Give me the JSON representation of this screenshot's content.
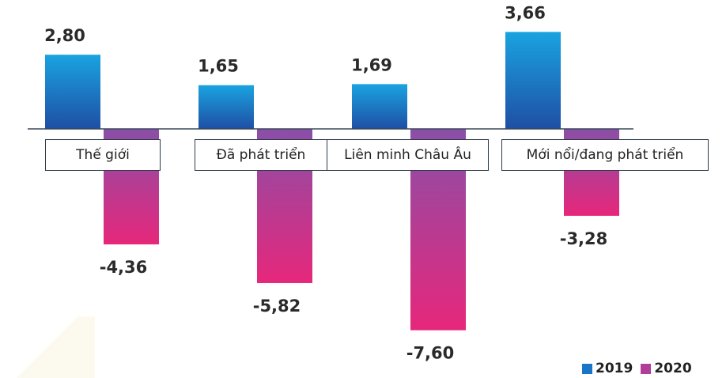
{
  "chart_data": {
    "type": "bar",
    "categories": [
      "Thế giới",
      "Đã phát triển",
      "Liên minh Châu Âu",
      "Mới nổi/đang phát triển"
    ],
    "series": [
      {
        "name": "2019",
        "values": [
          2.8,
          1.65,
          1.69,
          3.66
        ],
        "labels": [
          "2,80",
          "1,65",
          "1,69",
          "3,66"
        ],
        "color": "#1a74c8"
      },
      {
        "name": "2020",
        "values": [
          -4.36,
          -5.82,
          -7.6,
          -3.28
        ],
        "labels": [
          "-4,36",
          "-5,82",
          "-7,60",
          "-3,28"
        ],
        "color": "#b13f9a"
      }
    ],
    "ylim": [
      -7.6,
      3.66
    ],
    "grid": false,
    "legend": "bottom-right",
    "colors": {
      "2019_top": "#1aa3e0",
      "2019_bottom": "#1e4fa5",
      "2020_top": "#8a4fa8",
      "2020_bottom": "#e6277b",
      "baseline": "#3a4a5a"
    }
  }
}
